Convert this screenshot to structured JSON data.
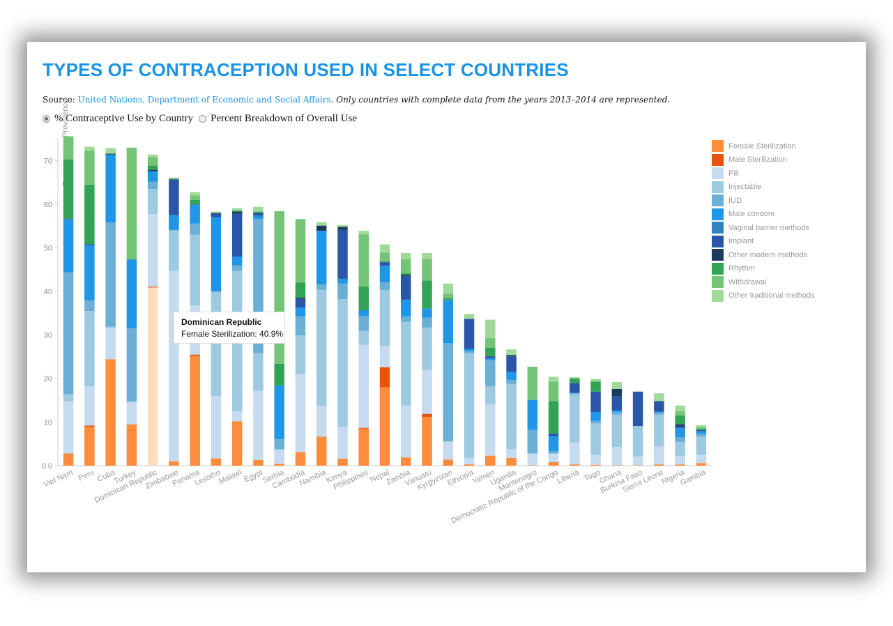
{
  "title": "TYPES OF CONTRACEPTION USED IN SELECT COUNTRIES",
  "source": {
    "prefix": "Source: ",
    "link_text": "United Nations, Department of Economic and Social Affairs",
    "note": ". Only countries with complete data from the years 2013–2014 are represented."
  },
  "toggles": {
    "option1": "% Contraceptive Use by Country",
    "option2": "Percent Breakdown of Overall Use",
    "selected": "option1"
  },
  "tooltip": {
    "country": "Dominican Republic",
    "text": "Female Sterilization: 40.9%"
  },
  "highlight_index": 4,
  "colors": [
    "#fd8d3c",
    "#e6550d",
    "#c6dbef",
    "#9ecae1",
    "#6baed6",
    "#1f96e6",
    "#3182bd",
    "#2a56a8",
    "#1b3a5c",
    "#31a354",
    "#74c476",
    "#a1d99b"
  ],
  "chart_data": {
    "type": "bar",
    "stacked": true,
    "ylabel": "Contraceptive Prevalence",
    "ylim": [
      0,
      75
    ],
    "yticks": [
      "0.0",
      "10",
      "20",
      "30",
      "40",
      "50",
      "60",
      "70"
    ],
    "grid": false,
    "legend_position": "right",
    "categories": [
      "Viet Nam",
      "Peru",
      "Cuba",
      "Turkey",
      "Dominican Republic",
      "Zimbabwe",
      "Panama",
      "Lesotho",
      "Malawi",
      "Egypt",
      "Serbia",
      "Cambodia",
      "Namibia",
      "Kenya",
      "Philippines",
      "Nepal",
      "Zambia",
      "Vanuatu",
      "Kyrgyzstan",
      "Ethiopia",
      "Yemen",
      "Uganda",
      "Montenegro",
      "Democratic Republic of the Congo",
      "Liberia",
      "Togo",
      "Ghana",
      "Burkina Faso",
      "Sierra Leone",
      "Nigeria",
      "Gambia"
    ],
    "series": [
      {
        "name": "Female Sterilization",
        "values": [
          2.8,
          8.9,
          24.4,
          9.5,
          40.9,
          1.0,
          25.2,
          1.7,
          10.2,
          1.3,
          0.4,
          3.1,
          6.7,
          1.6,
          8.5,
          18.0,
          1.9,
          11.2,
          1.4,
          0.3,
          2.3,
          1.8,
          0.1,
          0.8,
          0.3,
          0.2,
          0.1,
          0.1,
          0.3,
          0.3,
          0.6
        ]
      },
      {
        "name": "Male Sterilization",
        "values": [
          0,
          0.3,
          0,
          0,
          0.2,
          0,
          0.3,
          0,
          0,
          0,
          0,
          0,
          0,
          0,
          0.2,
          4.6,
          0,
          0.7,
          0,
          0,
          0,
          0,
          0,
          0,
          0,
          0,
          0,
          0,
          0,
          0,
          0
        ]
      },
      {
        "name": "Pill",
        "values": [
          12.0,
          9.0,
          7.2,
          5.0,
          16.6,
          43.7,
          11.3,
          14.3,
          2.3,
          15.9,
          3.2,
          17.9,
          7.0,
          7.3,
          19.0,
          4.8,
          11.9,
          10.1,
          4.1,
          1.5,
          11.8,
          2.0,
          2.7,
          2.0,
          5.0,
          2.3,
          4.2,
          2.0,
          4.1,
          1.9,
          1.9
        ]
      },
      {
        "name": "Injectable",
        "values": [
          1.6,
          17.3,
          0.3,
          0.3,
          5.8,
          9.3,
          16.2,
          23.9,
          32.2,
          8.6,
          0.2,
          8.9,
          26.7,
          29.3,
          3.2,
          12.9,
          19.2,
          9.7,
          0.1,
          24.0,
          4.1,
          15.0,
          0,
          0,
          11.0,
          7.2,
          7.4,
          7.0,
          7.3,
          3.2,
          4.2
        ]
      },
      {
        "name": "IUD",
        "values": [
          28.0,
          2.4,
          23.9,
          16.8,
          1.7,
          0.1,
          2.6,
          0.1,
          1.3,
          30.8,
          2.3,
          4.4,
          1.2,
          3.6,
          3.5,
          1.8,
          1.2,
          2.3,
          22.5,
          0.5,
          6.0,
          0.9,
          5.4,
          0.5,
          0.3,
          0.6,
          0.6,
          0,
          0.5,
          1.1,
          0.6
        ]
      },
      {
        "name": "Male condom",
        "values": [
          11.9,
          12.7,
          15.6,
          15.7,
          2.4,
          3.4,
          4.2,
          17.0,
          2.0,
          0.6,
          12.3,
          2.0,
          12.3,
          1.1,
          1.2,
          3.8,
          3.9,
          2.1,
          10.0,
          0.5,
          0.4,
          1.8,
          6.9,
          3.5,
          0.1,
          2.0,
          0.4,
          0,
          0.2,
          2.1,
          0.6
        ]
      },
      {
        "name": "Vaginal barrier methods",
        "values": [
          0.4,
          0,
          0,
          0,
          0,
          0,
          0.2,
          0,
          0,
          0.2,
          0,
          0,
          0,
          0,
          0.1,
          0,
          0,
          0,
          0,
          0,
          0,
          0,
          0,
          0,
          0,
          0,
          0,
          0,
          0,
          0,
          0
        ]
      },
      {
        "name": "Implant",
        "values": [
          0,
          0.2,
          0,
          0,
          0,
          8.2,
          0,
          0.8,
          9.8,
          0.6,
          0,
          2.0,
          0,
          11.2,
          0,
          0.8,
          5.4,
          0,
          0,
          6.9,
          0.5,
          3.6,
          0,
          0.6,
          2.2,
          4.7,
          3.3,
          7.9,
          2.4,
          0.6,
          0.2
        ]
      },
      {
        "name": "Other modern methods",
        "values": [
          0,
          0,
          0.2,
          0,
          0.3,
          0,
          0,
          0.2,
          0.5,
          0,
          0,
          0.3,
          1.2,
          0.7,
          0,
          0,
          0.3,
          0,
          0,
          0,
          0,
          0.3,
          0,
          0,
          0.1,
          0,
          1.6,
          0,
          0,
          0.3,
          0.1
        ]
      },
      {
        "name": "Rhythm",
        "values": [
          13.6,
          13.7,
          0,
          0.1,
          1.0,
          0.1,
          1.0,
          0,
          0.3,
          0.3,
          5.0,
          3.4,
          0,
          0,
          5.4,
          0.2,
          0.4,
          6.4,
          0.3,
          0,
          2.0,
          0,
          0,
          7.4,
          1.0,
          2.2,
          0,
          0,
          0,
          2.0,
          0.3
        ]
      },
      {
        "name": "Withdrawal",
        "values": [
          5.3,
          7.8,
          0,
          25.6,
          1.9,
          0.3,
          1.0,
          0,
          0,
          0,
          35.0,
          14.6,
          0,
          0,
          12.0,
          2.0,
          3.2,
          5.0,
          1.1,
          0,
          2.2,
          0,
          7.6,
          4.5,
          0,
          0.3,
          0,
          0,
          0,
          1.0,
          0.3
        ]
      },
      {
        "name": "Other traditional methods",
        "values": [
          0,
          0.9,
          1.3,
          0,
          0.6,
          0,
          0.8,
          0.3,
          0.5,
          1.1,
          0,
          0,
          0.8,
          0.4,
          0.8,
          1.9,
          1.4,
          1.3,
          2.3,
          1.1,
          4.2,
          1.3,
          0,
          1.1,
          0.3,
          0.4,
          1.6,
          0,
          1.8,
          1.3,
          0.5
        ]
      }
    ]
  }
}
